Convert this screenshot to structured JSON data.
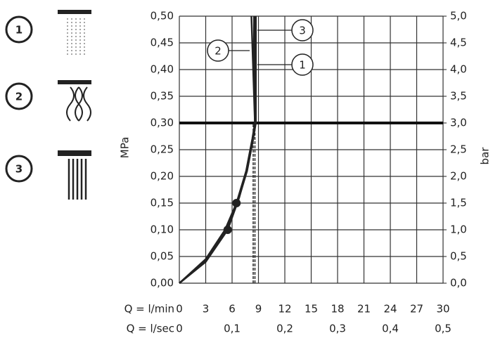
{
  "chart_data": {
    "type": "line",
    "x_label": "Q = l/min",
    "x2_label": "Q = l/sec",
    "y_label": "MPa",
    "y2_label": "bar",
    "xlim": [
      0,
      30
    ],
    "xticks": [
      0,
      3,
      6,
      9,
      12,
      15,
      18,
      21,
      24,
      27,
      30
    ],
    "x2lim": [
      0,
      0.5
    ],
    "x2ticks": [
      0,
      {
        "value": 0.1,
        "label": "0,1"
      },
      {
        "value": 0.2,
        "label": "0,2"
      },
      {
        "value": 0.3,
        "label": "0,3"
      },
      {
        "value": 0.4,
        "label": "0,4"
      },
      {
        "value": 0.5,
        "label": "0,5"
      }
    ],
    "ylim": [
      0,
      0.5
    ],
    "yticks": [
      {
        "value": 0,
        "label": "0,00"
      },
      {
        "value": 0.05,
        "label": "0,05"
      },
      {
        "value": 0.1,
        "label": "0,10"
      },
      {
        "value": 0.15,
        "label": "0,15"
      },
      {
        "value": 0.2,
        "label": "0,20"
      },
      {
        "value": 0.25,
        "label": "0,25"
      },
      {
        "value": 0.3,
        "label": "0,30"
      },
      {
        "value": 0.35,
        "label": "0,35"
      },
      {
        "value": 0.4,
        "label": "0,40"
      },
      {
        "value": 0.45,
        "label": "0,45"
      },
      {
        "value": 0.5,
        "label": "0,50"
      }
    ],
    "y2lim": [
      0,
      5
    ],
    "y2ticks": [
      {
        "value": 0,
        "label": "0,0"
      },
      {
        "value": 0.5,
        "label": "0,5"
      },
      {
        "value": 1,
        "label": "1,0"
      },
      {
        "value": 1.5,
        "label": "1,5"
      },
      {
        "value": 2,
        "label": "2,0"
      },
      {
        "value": 2.5,
        "label": "2,5"
      },
      {
        "value": 3,
        "label": "3,0"
      },
      {
        "value": 3.5,
        "label": "3,5"
      },
      {
        "value": 4,
        "label": "4,0"
      },
      {
        "value": 4.5,
        "label": "4,5"
      },
      {
        "value": 5,
        "label": "5,0"
      }
    ],
    "grid": true,
    "highlight_y": 0.3,
    "reference_x": [
      8.4,
      8.6
    ],
    "series": [
      {
        "name": "1",
        "color": "#222",
        "x": [
          0,
          3,
          5.5,
          6.8,
          7.8,
          8.5,
          8.7,
          8.7,
          8.7
        ],
        "values": [
          0,
          0.04,
          0.1,
          0.16,
          0.22,
          0.28,
          0.3,
          0.4,
          0.5
        ],
        "markers": [
          2
        ]
      },
      {
        "name": "2",
        "color": "#222",
        "x": [
          0,
          3,
          5.2,
          6.5,
          7.6,
          8.3,
          8.6,
          8.4,
          8.2
        ],
        "values": [
          0,
          0.045,
          0.1,
          0.15,
          0.21,
          0.27,
          0.3,
          0.4,
          0.5
        ],
        "markers": [
          3
        ]
      },
      {
        "name": "3",
        "color": "#222",
        "x": [
          0,
          3,
          5.4,
          6.6,
          7.7,
          8.4,
          8.6,
          8.5,
          8.5
        ],
        "values": [
          0,
          0.042,
          0.1,
          0.15,
          0.21,
          0.27,
          0.3,
          0.4,
          0.5
        ],
        "markers": []
      }
    ]
  }
}
